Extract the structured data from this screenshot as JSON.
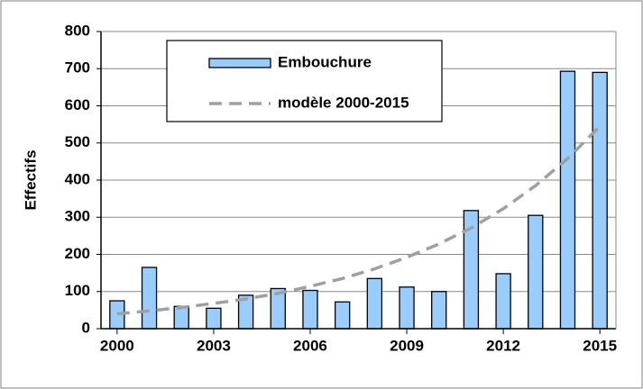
{
  "chart_data": {
    "type": "bar",
    "y_label": "Effectifs",
    "x": [
      2000,
      2001,
      2002,
      2003,
      2004,
      2005,
      2006,
      2007,
      2008,
      2009,
      2010,
      2011,
      2012,
      2013,
      2014,
      2015
    ],
    "series": [
      {
        "name": "Embouchure",
        "type": "bar",
        "color": "#99ccff",
        "values": [
          75,
          165,
          60,
          55,
          90,
          108,
          103,
          72,
          135,
          112,
          100,
          318,
          148,
          305,
          693,
          690
        ]
      },
      {
        "name": "modèle 2000-2015",
        "type": "line",
        "color": "#a0a0a0",
        "dashed": true,
        "values": [
          40,
          48,
          57,
          68,
          80,
          95,
          114,
          135,
          161,
          192,
          228,
          271,
          323,
          385,
          458,
          545
        ]
      }
    ],
    "xlim": [
      1999.5,
      2015.5
    ],
    "xticks": [
      2000,
      2003,
      2006,
      2009,
      2012,
      2015
    ],
    "ylim": [
      0,
      800
    ],
    "yticks": [
      0,
      100,
      200,
      300,
      400,
      500,
      600,
      700,
      800
    ],
    "grid": true
  }
}
